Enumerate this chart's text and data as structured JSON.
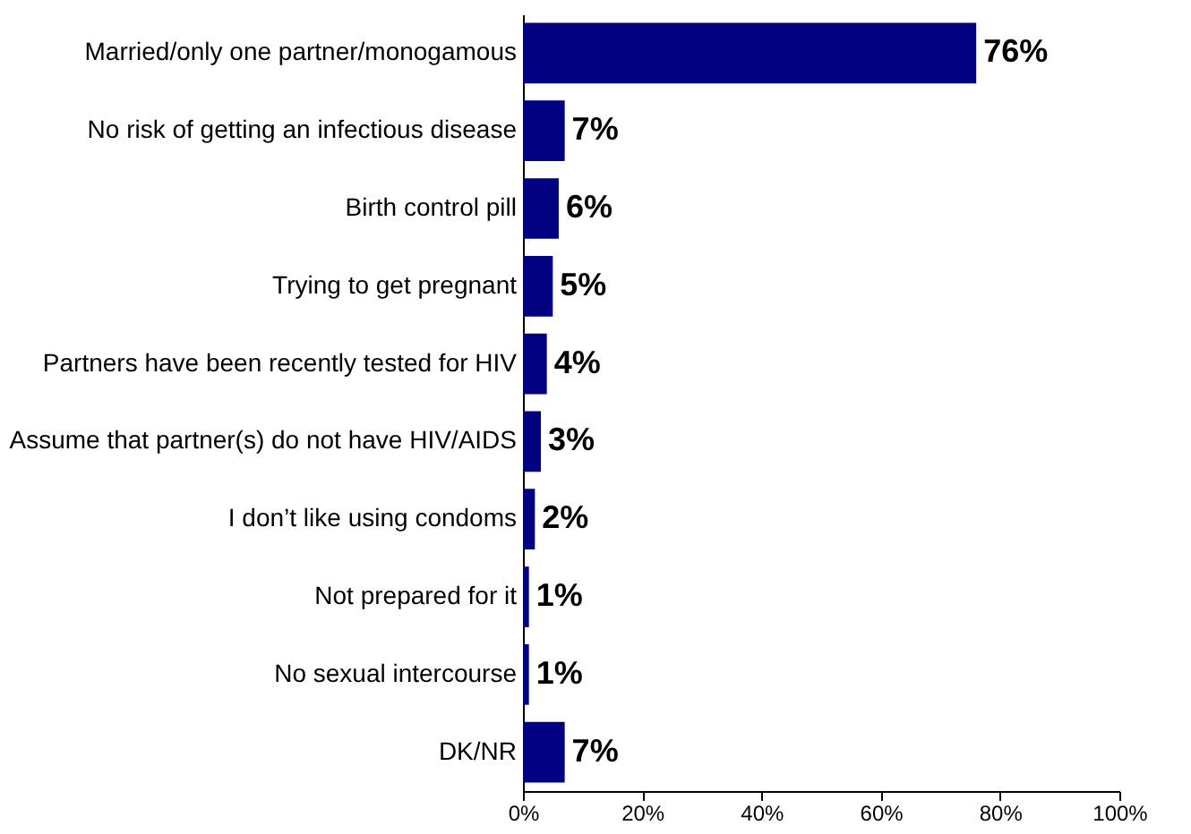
{
  "chart_data": {
    "type": "bar",
    "orientation": "horizontal",
    "categories": [
      "Married/only one partner/monogamous",
      "No risk of getting an infectious disease",
      "Birth control pill",
      "Trying to get pregnant",
      "Partners have been recently tested for HIV",
      "Assume that partner(s) do not have HIV/AIDS",
      "I don’t like using condoms",
      "Not prepared for it",
      "No sexual intercourse",
      "DK/NR"
    ],
    "values": [
      76,
      7,
      6,
      5,
      4,
      3,
      2,
      1,
      1,
      7
    ],
    "value_labels": [
      "76%",
      "7%",
      "6%",
      "5%",
      "4%",
      "3%",
      "2%",
      "1%",
      "1%",
      "7%"
    ],
    "color": "#000080",
    "xlim": [
      0,
      100
    ],
    "xticks": [
      {
        "value": 0,
        "label": "0%"
      },
      {
        "value": 20,
        "label": "20%"
      },
      {
        "value": 40,
        "label": "40%"
      },
      {
        "value": 60,
        "label": "60%"
      },
      {
        "value": 80,
        "label": "80%"
      },
      {
        "value": 100,
        "label": "100%"
      }
    ],
    "grid": false
  }
}
